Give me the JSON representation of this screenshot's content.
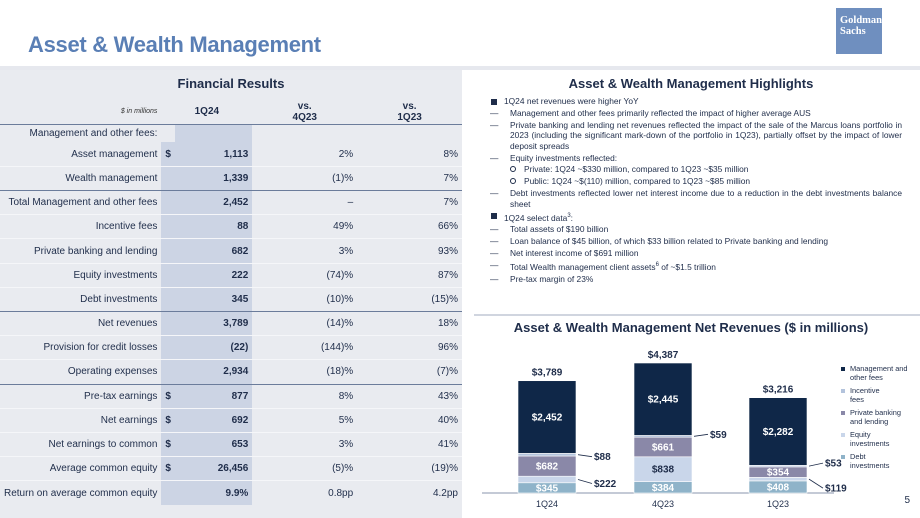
{
  "page": {
    "title": "Asset & Wealth Management",
    "logo_text": "Goldman Sachs",
    "page_number": "5"
  },
  "financial_results": {
    "heading": "Financial Results",
    "units": "$ in millions",
    "col1": "1Q24",
    "col2": "vs.\n4Q23",
    "col2a": "vs.",
    "col2b": "4Q23",
    "col3a": "vs.",
    "col3b": "1Q23",
    "subheading": "Management and other fees:",
    "rows": [
      {
        "label": "Asset management",
        "cur": "$",
        "v": "1,113",
        "q": "2%",
        "y": "8%"
      },
      {
        "label": "Wealth management",
        "cur": "",
        "v": "1,339",
        "q": "(1)%",
        "y": "7%"
      },
      {
        "label": "Total Management and other fees",
        "cur": "",
        "v": "2,452",
        "q": "–",
        "y": "7%"
      },
      {
        "label": "Incentive fees",
        "cur": "",
        "v": "88",
        "q": "49%",
        "y": "66%"
      },
      {
        "label": "Private banking and lending",
        "cur": "",
        "v": "682",
        "q": "3%",
        "y": "93%"
      },
      {
        "label": "Equity investments",
        "cur": "",
        "v": "222",
        "q": "(74)%",
        "y": "87%"
      },
      {
        "label": "Debt investments",
        "cur": "",
        "v": "345",
        "q": "(10)%",
        "y": "(15)%"
      },
      {
        "label": "Net revenues",
        "cur": "",
        "v": "3,789",
        "q": "(14)%",
        "y": "18%"
      },
      {
        "label": "Provision for credit losses",
        "cur": "",
        "v": "(22)",
        "q": "(144)%",
        "y": "96%"
      },
      {
        "label": "Operating expenses",
        "cur": "",
        "v": "2,934",
        "q": "(18)%",
        "y": "(7)%"
      },
      {
        "label": "Pre-tax earnings",
        "cur": "$",
        "v": "877",
        "q": "8%",
        "y": "43%"
      },
      {
        "label": "Net earnings",
        "cur": "$",
        "v": "692",
        "q": "5%",
        "y": "40%"
      },
      {
        "label": "Net earnings to common",
        "cur": "$",
        "v": "653",
        "q": "3%",
        "y": "41%"
      },
      {
        "label": "Average common equity",
        "cur": "$",
        "v": "26,456",
        "q": "(5)%",
        "y": "(19)%"
      },
      {
        "label": "Return on average common equity",
        "cur": "",
        "v": "9.9%",
        "q": "0.8pp",
        "y": "4.2pp"
      }
    ]
  },
  "highlights": {
    "heading": "Asset & Wealth Management Highlights",
    "b1": "1Q24 net revenues were higher YoY",
    "d1": "Management and other fees primarily reflected the impact of higher average AUS",
    "d2": "Private banking and lending net revenues reflected the impact of the sale of the Marcus loans portfolio in 2023 (including the significant mark-down of the portfolio in 1Q23), partially offset by the impact of lower deposit spreads",
    "d3": "Equity investments reflected:",
    "c1": "Private: 1Q24 ~$330 million, compared to 1Q23 ~$35 million",
    "c2": "Public: 1Q24 ~$(110) million, compared to 1Q23 ~$85 million",
    "d4": "Debt investments reflected lower net interest income due to a reduction in the debt investments balance sheet",
    "b2": "1Q24 select data",
    "b2_sup": "3",
    "b2_tail": ":",
    "e1": "Total assets of $190 billion",
    "e2": "Loan balance of $45 billion, of which $33 billion related to Private banking and lending",
    "e3": "Net interest income of $691 million",
    "e4a": "Total Wealth management client assets",
    "e4_sup": "6",
    "e4b": " of ~$1.5 trillion",
    "e5": "Pre-tax margin of 23%"
  },
  "chart_heading": "Asset & Wealth Management Net Revenues ($ in millions)",
  "chart_data": {
    "type": "bar",
    "stacked": true,
    "title": "Asset & Wealth Management Net Revenues ($ in millions)",
    "categories": [
      "1Q24",
      "4Q23",
      "1Q23"
    ],
    "totals": [
      3789,
      4387,
      3216
    ],
    "total_labels": [
      "$3,789",
      "$4,387",
      "$3,216"
    ],
    "series": [
      {
        "name": "Debt investments",
        "values": [
          345,
          384,
          408
        ],
        "labels": [
          "$345",
          "$384",
          "$408"
        ],
        "color": "#8fb3c9"
      },
      {
        "name": "Equity investments",
        "values": [
          222,
          838,
          119
        ],
        "labels": [
          "$222",
          "$838",
          "$119"
        ],
        "color": "#c9d6ea"
      },
      {
        "name": "Private banking and lending",
        "values": [
          682,
          661,
          354
        ],
        "labels": [
          "$682",
          "$661",
          "$354"
        ],
        "color": "#8a88a8"
      },
      {
        "name": "Incentive fees",
        "values": [
          88,
          59,
          53
        ],
        "labels": [
          "$88",
          "$59",
          "$53"
        ],
        "color": "#b3c3dc"
      },
      {
        "name": "Management and other fees",
        "values": [
          2452,
          2445,
          2282
        ],
        "labels": [
          "$2,452",
          "$2,445",
          "$2,282"
        ],
        "color": "#0f2748"
      }
    ],
    "legend": [
      "Management and other fees",
      "Incentive fees",
      "Private banking and lending",
      "Equity investments",
      "Debt investments"
    ],
    "legend_position": "right"
  }
}
